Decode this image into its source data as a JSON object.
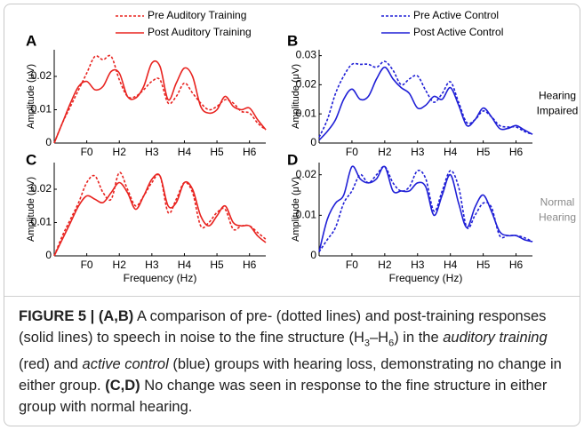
{
  "chart_data": [
    {
      "type": "line",
      "label": "A",
      "ylabel": "Amplitude (μV)",
      "legend": "top",
      "categories": [
        null,
        null,
        null,
        null,
        "F0",
        null,
        null,
        null,
        "H2",
        null,
        null,
        null,
        "H3",
        null,
        null,
        null,
        "H4",
        null,
        null,
        null,
        "H5",
        null,
        null,
        null,
        "H6",
        null,
        null
      ],
      "ylim": [
        0,
        0.028
      ],
      "yticks": [
        0,
        0.01,
        0.02
      ],
      "series": [
        {
          "name": "Pre Auditory Training",
          "color": "#e8231f",
          "dash": true,
          "values": [
            0,
            0.006,
            0.011,
            0.016,
            0.021,
            0.026,
            0.025,
            0.026,
            0.019,
            0.014,
            0.014,
            0.016,
            0.0185,
            0.019,
            0.012,
            0.014,
            0.018,
            0.015,
            0.012,
            0.01,
            0.011,
            0.013,
            0.012,
            0.0095,
            0.009,
            0.006,
            0.004
          ]
        },
        {
          "name": "Post Auditory Training",
          "color": "#e8231f",
          "dash": false,
          "values": [
            0,
            0.006,
            0.012,
            0.017,
            0.0185,
            0.016,
            0.017,
            0.0215,
            0.021,
            0.014,
            0.0135,
            0.017,
            0.024,
            0.023,
            0.013,
            0.018,
            0.0225,
            0.02,
            0.011,
            0.009,
            0.01,
            0.014,
            0.011,
            0.01,
            0.0105,
            0.007,
            0.004
          ]
        }
      ]
    },
    {
      "type": "line",
      "label": "B",
      "ylabel": "Amplitude (μV)",
      "legend": "top",
      "categories": [
        null,
        null,
        null,
        null,
        "F0",
        null,
        null,
        null,
        "H2",
        null,
        null,
        null,
        "H3",
        null,
        null,
        null,
        "H4",
        null,
        null,
        null,
        "H5",
        null,
        null,
        null,
        "H6",
        null,
        null
      ],
      "ylim": [
        0,
        0.032
      ],
      "yticks": [
        0,
        0.01,
        0.02,
        0.03
      ],
      "series": [
        {
          "name": "Pre Active Control",
          "color": "#1f1fd6",
          "dash": true,
          "values": [
            0.002,
            0.008,
            0.017,
            0.023,
            0.027,
            0.027,
            0.027,
            0.026,
            0.028,
            0.025,
            0.02,
            0.022,
            0.023,
            0.018,
            0.014,
            0.017,
            0.021,
            0.014,
            0.007,
            0.008,
            0.011,
            0.009,
            0.006,
            0.0055,
            0.0055,
            0.004,
            0.003
          ]
        },
        {
          "name": "Post Active Control",
          "color": "#1f1fd6",
          "dash": false,
          "values": [
            0.001,
            0.004,
            0.008,
            0.015,
            0.0185,
            0.015,
            0.016,
            0.022,
            0.026,
            0.022,
            0.019,
            0.017,
            0.012,
            0.013,
            0.016,
            0.015,
            0.019,
            0.013,
            0.006,
            0.008,
            0.012,
            0.009,
            0.005,
            0.005,
            0.006,
            0.0045,
            0.003
          ]
        }
      ]
    },
    {
      "type": "line",
      "label": "C",
      "ylabel": "Amplitude (μV)",
      "xlabel": "Frequency (Hz)",
      "categories": [
        null,
        null,
        null,
        null,
        "F0",
        null,
        null,
        null,
        "H2",
        null,
        null,
        null,
        "H3",
        null,
        null,
        null,
        "H4",
        null,
        null,
        null,
        "H5",
        null,
        null,
        null,
        "H6",
        null,
        null
      ],
      "ylim": [
        0,
        0.028
      ],
      "yticks": [
        0,
        0.01,
        0.02
      ],
      "series": [
        {
          "color": "#e8231f",
          "dash": true,
          "values": [
            0,
            0.006,
            0.011,
            0.016,
            0.022,
            0.024,
            0.019,
            0.017,
            0.025,
            0.02,
            0.015,
            0.018,
            0.022,
            0.024,
            0.013,
            0.017,
            0.022,
            0.019,
            0.009,
            0.01,
            0.013,
            0.014,
            0.008,
            0.009,
            0.009,
            0.007,
            0.005
          ]
        },
        {
          "color": "#e8231f",
          "dash": false,
          "values": [
            0,
            0.005,
            0.01,
            0.015,
            0.018,
            0.017,
            0.016,
            0.019,
            0.022,
            0.019,
            0.014,
            0.018,
            0.023,
            0.024,
            0.015,
            0.016,
            0.022,
            0.02,
            0.012,
            0.009,
            0.012,
            0.015,
            0.01,
            0.009,
            0.009,
            0.006,
            0.004
          ]
        }
      ]
    },
    {
      "type": "line",
      "label": "D",
      "ylabel": "Amplitude (μV)",
      "xlabel": "Frequency (Hz)",
      "categories": [
        null,
        null,
        null,
        null,
        "F0",
        null,
        null,
        null,
        "H2",
        null,
        null,
        null,
        "H3",
        null,
        null,
        null,
        "H4",
        null,
        null,
        null,
        "H5",
        null,
        null,
        null,
        "H6",
        null,
        null
      ],
      "ylim": [
        0,
        0.023
      ],
      "yticks": [
        0,
        0.01,
        0.02
      ],
      "series": [
        {
          "color": "#1f1fd6",
          "dash": true,
          "values": [
            0.001,
            0.004,
            0.007,
            0.013,
            0.016,
            0.02,
            0.018,
            0.02,
            0.022,
            0.018,
            0.016,
            0.017,
            0.021,
            0.019,
            0.011,
            0.016,
            0.021,
            0.017,
            0.007,
            0.01,
            0.013,
            0.012,
            0.005,
            0.005,
            0.005,
            0.0045,
            0.0035
          ]
        },
        {
          "color": "#1f1fd6",
          "dash": false,
          "values": [
            0.001,
            0.009,
            0.013,
            0.015,
            0.022,
            0.019,
            0.018,
            0.019,
            0.022,
            0.016,
            0.016,
            0.016,
            0.018,
            0.017,
            0.01,
            0.015,
            0.02,
            0.013,
            0.007,
            0.012,
            0.015,
            0.011,
            0.006,
            0.005,
            0.005,
            0.004,
            0.0035
          ]
        }
      ]
    }
  ],
  "row_labels": [
    {
      "lines": [
        "Hearing",
        "Impaired"
      ],
      "color": "#000000"
    },
    {
      "lines": [
        "Normal",
        "Hearing"
      ],
      "color": "#8a8a8a"
    }
  ],
  "caption": {
    "runs": [
      {
        "text": "FIGURE 5 | (A,B)",
        "style": "bold"
      },
      {
        "text": " A comparison of pre- (dotted lines) and post-training responses (solid lines) to speech in noise to the fine structure (H"
      },
      {
        "text": "3",
        "style": "sub"
      },
      {
        "text": "–H"
      },
      {
        "text": "6",
        "style": "sub"
      },
      {
        "text": ") in the "
      },
      {
        "text": "auditory training",
        "style": "italic"
      },
      {
        "text": " (red) and "
      },
      {
        "text": "active control",
        "style": "italic"
      },
      {
        "text": " (blue) groups with hearing loss, demonstrating no change in either group. "
      },
      {
        "text": "(C,D)",
        "style": "bold"
      },
      {
        "text": " No change was seen in response to the fine structure in either group with normal hearing."
      }
    ]
  }
}
